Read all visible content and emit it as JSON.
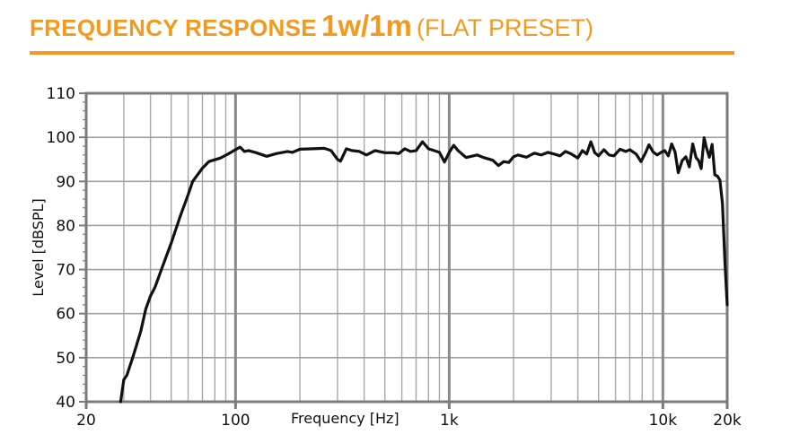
{
  "header": {
    "title_bold": "FREQUENCY RESPONSE",
    "title_emph": "1w/1m",
    "title_light": "(FLAT PRESET)",
    "accent_color": "#f39a1e"
  },
  "chart_data": {
    "type": "line",
    "title": "FREQUENCY RESPONSE 1w/1m (FLAT PRESET)",
    "xlabel": "Frequency [Hz]",
    "ylabel": "Level [dBSPL]",
    "x_scale": "log",
    "xlim": [
      20,
      20000
    ],
    "ylim": [
      40,
      110
    ],
    "x_ticks": [
      {
        "value": 20,
        "label": "20"
      },
      {
        "value": 100,
        "label": "100"
      },
      {
        "value": 1000,
        "label": "1k"
      },
      {
        "value": 10000,
        "label": "10k"
      },
      {
        "value": 20000,
        "label": "20k"
      }
    ],
    "y_ticks": [
      40,
      50,
      60,
      70,
      80,
      90,
      100,
      110
    ],
    "grid": true,
    "legend": null,
    "series": [
      {
        "name": "Flat preset",
        "color": "#111111",
        "points": [
          [
            29,
            40
          ],
          [
            30,
            45
          ],
          [
            31,
            46
          ],
          [
            33,
            50
          ],
          [
            36,
            56
          ],
          [
            38,
            61
          ],
          [
            40,
            64
          ],
          [
            42,
            66
          ],
          [
            45,
            70
          ],
          [
            50,
            76
          ],
          [
            55,
            82
          ],
          [
            60,
            87
          ],
          [
            63,
            90
          ],
          [
            70,
            93
          ],
          [
            75,
            94.5
          ],
          [
            85,
            95.3
          ],
          [
            93,
            96.3
          ],
          [
            100,
            97.2
          ],
          [
            105,
            97.8
          ],
          [
            110,
            96.8
          ],
          [
            115,
            97
          ],
          [
            125,
            96.5
          ],
          [
            140,
            95.7
          ],
          [
            155,
            96.3
          ],
          [
            175,
            96.8
          ],
          [
            185,
            96.6
          ],
          [
            200,
            97.3
          ],
          [
            230,
            97.4
          ],
          [
            260,
            97.5
          ],
          [
            280,
            97.0
          ],
          [
            300,
            95
          ],
          [
            310,
            94.6
          ],
          [
            330,
            97.4
          ],
          [
            350,
            97
          ],
          [
            380,
            96.8
          ],
          [
            410,
            96
          ],
          [
            450,
            97
          ],
          [
            500,
            96.5
          ],
          [
            550,
            96.5
          ],
          [
            580,
            96.3
          ],
          [
            620,
            97.4
          ],
          [
            660,
            96.8
          ],
          [
            700,
            97.0
          ],
          [
            750,
            99
          ],
          [
            800,
            97.4
          ],
          [
            900,
            96.6
          ],
          [
            950,
            94.4
          ],
          [
            1000,
            96.6
          ],
          [
            1050,
            98.2
          ],
          [
            1100,
            97.0
          ],
          [
            1200,
            95.4
          ],
          [
            1350,
            96.0
          ],
          [
            1450,
            95.4
          ],
          [
            1600,
            94.8
          ],
          [
            1700,
            93.6
          ],
          [
            1800,
            94.5
          ],
          [
            1900,
            94.3
          ],
          [
            2000,
            95.6
          ],
          [
            2100,
            96.0
          ],
          [
            2300,
            95.5
          ],
          [
            2500,
            96.4
          ],
          [
            2700,
            96.0
          ],
          [
            2900,
            96.6
          ],
          [
            3100,
            96.2
          ],
          [
            3300,
            95.8
          ],
          [
            3500,
            96.8
          ],
          [
            3700,
            96.3
          ],
          [
            4000,
            95.3
          ],
          [
            4200,
            97.0
          ],
          [
            4400,
            96.2
          ],
          [
            4600,
            99.0
          ],
          [
            4800,
            96.5
          ],
          [
            5000,
            95.8
          ],
          [
            5300,
            97.2
          ],
          [
            5600,
            96.0
          ],
          [
            5900,
            95.8
          ],
          [
            6300,
            97.3
          ],
          [
            6700,
            96.8
          ],
          [
            7000,
            97.2
          ],
          [
            7500,
            96.2
          ],
          [
            7900,
            94.5
          ],
          [
            8300,
            96.5
          ],
          [
            8600,
            98.3
          ],
          [
            9000,
            96.7
          ],
          [
            9400,
            96.0
          ],
          [
            9800,
            96.6
          ],
          [
            10200,
            97.0
          ],
          [
            10600,
            95.8
          ],
          [
            11000,
            98.5
          ],
          [
            11400,
            96.7
          ],
          [
            11800,
            92.0
          ],
          [
            12300,
            94.7
          ],
          [
            12800,
            95.6
          ],
          [
            13300,
            93.3
          ],
          [
            13800,
            98.5
          ],
          [
            14300,
            95.4
          ],
          [
            14700,
            94.7
          ],
          [
            15100,
            92.9
          ],
          [
            15600,
            99.9
          ],
          [
            16000,
            97.6
          ],
          [
            16500,
            95.5
          ],
          [
            17000,
            98.4
          ],
          [
            17500,
            91.5
          ],
          [
            18000,
            91.2
          ],
          [
            18500,
            90.3
          ],
          [
            19000,
            85
          ],
          [
            19500,
            72
          ],
          [
            20000,
            62
          ]
        ]
      }
    ]
  }
}
